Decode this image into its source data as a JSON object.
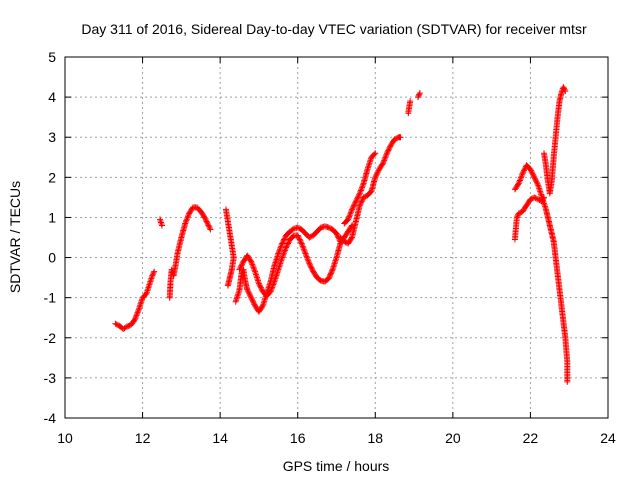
{
  "chart_data": {
    "type": "scatter",
    "title": "Day 311 of 2016, Sidereal Day-to-day VTEC variation (SDTVAR) for receiver mtsr",
    "xlabel": "GPS time / hours",
    "ylabel": "SDTVAR / TECUs",
    "xlim": [
      10,
      24
    ],
    "ylim": [
      -4,
      5
    ],
    "xticks": [
      10,
      12,
      14,
      16,
      18,
      20,
      22,
      24
    ],
    "yticks": [
      -4,
      -3,
      -2,
      -1,
      0,
      1,
      2,
      3,
      4,
      5
    ],
    "grid": true,
    "marker": "+",
    "color": "#ff0000",
    "series": [
      {
        "name": "mtsr",
        "segments": [
          [
            [
              11.3,
              -1.65
            ],
            [
              11.4,
              -1.7
            ],
            [
              11.5,
              -1.78
            ],
            [
              11.6,
              -1.72
            ],
            [
              11.7,
              -1.68
            ],
            [
              11.8,
              -1.55
            ],
            [
              11.9,
              -1.3
            ],
            [
              12.0,
              -1.0
            ],
            [
              12.1,
              -0.9
            ],
            [
              12.2,
              -0.6
            ],
            [
              12.25,
              -0.45
            ],
            [
              12.3,
              -0.35
            ]
          ],
          [
            [
              12.45,
              0.95
            ],
            [
              12.5,
              0.8
            ]
          ],
          [
            [
              12.7,
              -1.0
            ],
            [
              12.72,
              -0.6
            ],
            [
              12.75,
              -0.3
            ],
            [
              12.8,
              -0.45
            ],
            [
              12.85,
              -0.2
            ],
            [
              12.9,
              0.1
            ],
            [
              13.0,
              0.5
            ],
            [
              13.1,
              0.85
            ],
            [
              13.2,
              1.1
            ],
            [
              13.3,
              1.25
            ],
            [
              13.4,
              1.25
            ],
            [
              13.5,
              1.15
            ],
            [
              13.6,
              1.0
            ],
            [
              13.7,
              0.8
            ],
            [
              13.75,
              0.7
            ]
          ],
          [
            [
              14.15,
              1.2
            ],
            [
              14.2,
              0.9
            ],
            [
              14.25,
              0.6
            ],
            [
              14.3,
              0.3
            ],
            [
              14.35,
              0.0
            ],
            [
              14.3,
              -0.3
            ],
            [
              14.25,
              -0.5
            ],
            [
              14.2,
              -0.7
            ]
          ],
          [
            [
              14.4,
              -1.1
            ],
            [
              14.5,
              -0.8
            ],
            [
              14.55,
              -0.4
            ],
            [
              14.6,
              -0.3
            ],
            [
              14.65,
              -0.6
            ],
            [
              14.7,
              -0.8
            ],
            [
              14.8,
              -1.0
            ],
            [
              14.9,
              -1.2
            ],
            [
              15.0,
              -1.35
            ],
            [
              15.1,
              -1.2
            ],
            [
              15.2,
              -0.9
            ],
            [
              15.3,
              -0.6
            ],
            [
              15.4,
              -0.2
            ],
            [
              15.5,
              0.1
            ],
            [
              15.6,
              0.35
            ],
            [
              15.7,
              0.55
            ],
            [
              15.8,
              0.65
            ],
            [
              15.9,
              0.72
            ],
            [
              16.0,
              0.75
            ],
            [
              16.1,
              0.7
            ],
            [
              16.2,
              0.6
            ],
            [
              16.3,
              0.5
            ],
            [
              16.4,
              0.55
            ],
            [
              16.5,
              0.65
            ],
            [
              16.6,
              0.75
            ],
            [
              16.7,
              0.78
            ],
            [
              16.8,
              0.75
            ],
            [
              16.9,
              0.7
            ],
            [
              17.0,
              0.6
            ],
            [
              17.1,
              0.4
            ]
          ],
          [
            [
              14.5,
              -0.3
            ],
            [
              14.6,
              -0.1
            ],
            [
              14.7,
              0.05
            ],
            [
              14.8,
              -0.1
            ],
            [
              14.9,
              -0.35
            ],
            [
              15.0,
              -0.65
            ],
            [
              15.1,
              -0.85
            ],
            [
              15.2,
              -0.95
            ],
            [
              15.3,
              -0.85
            ],
            [
              15.4,
              -0.6
            ],
            [
              15.5,
              -0.3
            ],
            [
              15.6,
              0.0
            ],
            [
              15.7,
              0.25
            ],
            [
              15.8,
              0.45
            ],
            [
              15.9,
              0.55
            ],
            [
              16.0,
              0.55
            ],
            [
              16.1,
              0.35
            ],
            [
              16.2,
              0.1
            ],
            [
              16.3,
              -0.15
            ],
            [
              16.4,
              -0.35
            ],
            [
              16.5,
              -0.5
            ],
            [
              16.6,
              -0.58
            ],
            [
              16.7,
              -0.6
            ],
            [
              16.8,
              -0.52
            ],
            [
              16.9,
              -0.3
            ],
            [
              17.0,
              0.0
            ],
            [
              17.1,
              0.35
            ],
            [
              17.2,
              0.5
            ],
            [
              17.3,
              0.65
            ],
            [
              17.4,
              0.8
            ]
          ],
          [
            [
              17.1,
              0.5
            ],
            [
              17.2,
              0.4
            ],
            [
              17.3,
              0.35
            ],
            [
              17.4,
              0.5
            ],
            [
              17.5,
              0.9
            ],
            [
              17.6,
              1.3
            ],
            [
              17.7,
              1.5
            ],
            [
              17.8,
              1.55
            ],
            [
              17.9,
              1.65
            ],
            [
              18.0,
              2.0
            ],
            [
              18.1,
              2.2
            ],
            [
              18.2,
              2.35
            ],
            [
              18.3,
              2.6
            ],
            [
              18.4,
              2.8
            ],
            [
              18.5,
              2.95
            ],
            [
              18.6,
              3.0
            ],
            [
              18.65,
              3.0
            ]
          ],
          [
            [
              17.2,
              0.85
            ],
            [
              17.3,
              0.95
            ],
            [
              17.4,
              1.2
            ],
            [
              17.5,
              1.4
            ],
            [
              17.6,
              1.6
            ],
            [
              17.7,
              1.85
            ],
            [
              17.8,
              2.2
            ],
            [
              17.9,
              2.5
            ],
            [
              18.0,
              2.6
            ]
          ],
          [
            [
              18.85,
              3.6
            ],
            [
              18.9,
              3.9
            ]
          ],
          [
            [
              19.1,
              4.0
            ],
            [
              19.15,
              4.1
            ]
          ],
          [
            [
              21.6,
              0.45
            ],
            [
              21.65,
              1.0
            ],
            [
              21.7,
              1.1
            ],
            [
              21.8,
              1.15
            ],
            [
              21.9,
              1.3
            ],
            [
              22.0,
              1.45
            ],
            [
              22.1,
              1.5
            ],
            [
              22.2,
              1.45
            ],
            [
              22.3,
              1.4
            ],
            [
              22.35,
              1.5
            ]
          ],
          [
            [
              21.6,
              1.7
            ],
            [
              21.7,
              1.85
            ],
            [
              21.8,
              2.1
            ],
            [
              21.9,
              2.3
            ],
            [
              22.0,
              2.2
            ],
            [
              22.1,
              2.0
            ],
            [
              22.2,
              1.8
            ],
            [
              22.3,
              1.5
            ],
            [
              22.4,
              1.2
            ],
            [
              22.45,
              1.0
            ],
            [
              22.5,
              0.8
            ],
            [
              22.55,
              0.6
            ],
            [
              22.6,
              0.4
            ],
            [
              22.65,
              0.0
            ],
            [
              22.7,
              -0.4
            ],
            [
              22.75,
              -0.8
            ],
            [
              22.8,
              -1.2
            ],
            [
              22.85,
              -1.6
            ],
            [
              22.9,
              -2.0
            ],
            [
              22.95,
              -2.6
            ],
            [
              22.95,
              -3.1
            ]
          ],
          [
            [
              22.35,
              2.6
            ],
            [
              22.4,
              2.3
            ],
            [
              22.45,
              1.9
            ],
            [
              22.5,
              1.6
            ],
            [
              22.55,
              1.9
            ],
            [
              22.6,
              2.5
            ],
            [
              22.65,
              3.0
            ],
            [
              22.7,
              3.5
            ],
            [
              22.75,
              3.9
            ],
            [
              22.8,
              4.1
            ],
            [
              22.85,
              4.25
            ],
            [
              22.9,
              4.15
            ]
          ]
        ]
      }
    ]
  }
}
